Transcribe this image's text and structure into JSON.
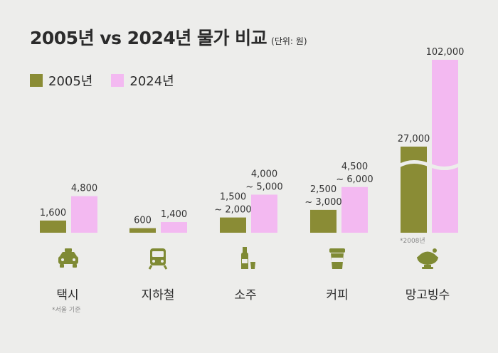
{
  "title": "2005년 vs 2024년 물가 비교",
  "unit": "(단위: 원)",
  "colors": {
    "y2005": "#8a8c35",
    "y2024": "#f3b9f1",
    "icon": "#7f8a34"
  },
  "chart_data": {
    "type": "bar",
    "title": "2005년 vs 2024년 물가 비교",
    "unit": "(단위: 원)",
    "categories": [
      "택시",
      "지하철",
      "소주",
      "커피",
      "망고빙수"
    ],
    "series": [
      {
        "name": "2005년",
        "values": [
          1600,
          600,
          2000,
          3000,
          27000
        ],
        "labels": [
          [
            "1,600"
          ],
          [
            "600"
          ],
          [
            "1,500",
            "~ 2,000"
          ],
          [
            "2,500",
            "~ 3,000"
          ],
          [
            "27,000"
          ]
        ]
      },
      {
        "name": "2024년",
        "values": [
          4800,
          1400,
          5000,
          6000,
          102000
        ],
        "labels": [
          [
            "4,800"
          ],
          [
            "1,400"
          ],
          [
            "4,000",
            "~ 5,000"
          ],
          [
            "4,500",
            "~ 6,000"
          ],
          [
            "102,000"
          ]
        ]
      }
    ],
    "legend": "top-left",
    "axis_break": true
  },
  "notes": {
    "taxi": "*서울 기준",
    "bingsu": "*2008년"
  },
  "icons": [
    "taxi-icon",
    "subway-icon",
    "soju-bottle-icon",
    "coffee-cup-icon",
    "bingsu-bowl-icon"
  ]
}
